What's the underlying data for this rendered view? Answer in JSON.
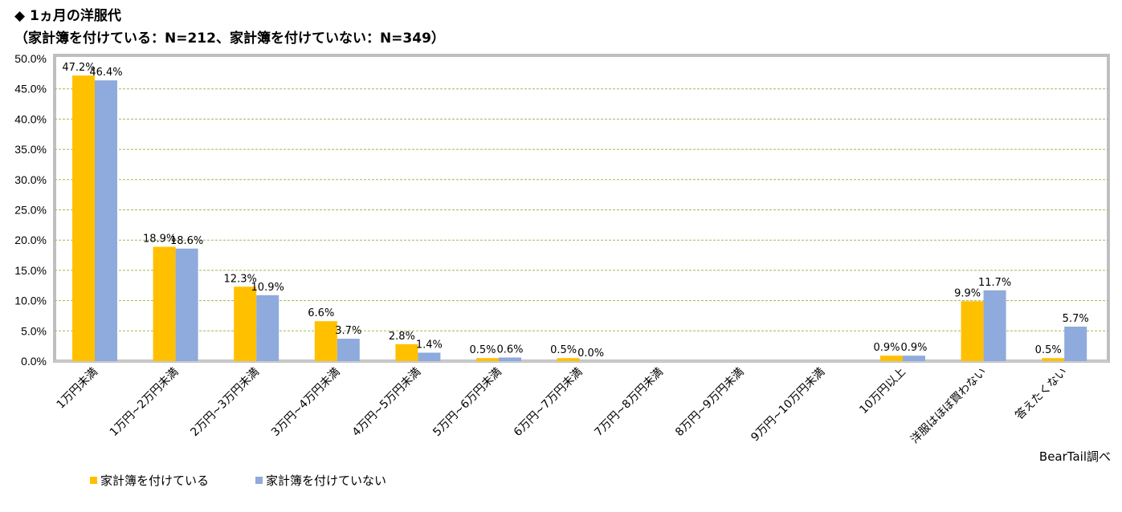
{
  "title": {
    "line1": "◆ 1ヵ月の洋服代",
    "line2": "（家計簿を付けている：N=212、家計簿を付けていない：N=349）"
  },
  "credit": "BearTail調べ",
  "colors": {
    "series1": "#FFC000",
    "series2": "#8FAADC",
    "grid": "#9BBB59",
    "frame": "#BFBFBF"
  },
  "chart_data": {
    "type": "bar",
    "categories": [
      "1万円未満",
      "1万円~2万円未満",
      "2万円~3万円未満",
      "3万円~4万円未満",
      "4万円~5万円未満",
      "5万円~6万円未満",
      "6万円~7万円未満",
      "7万円~8万円未満",
      "8万円~9万円未満",
      "9万円~10万円未満",
      "10万円以上",
      "洋服はほぼ買わない",
      "答えたくない"
    ],
    "series": [
      {
        "name": "家計簿を付けている",
        "values": [
          47.2,
          18.9,
          12.3,
          6.6,
          2.8,
          0.5,
          0.5,
          null,
          null,
          null,
          0.9,
          9.9,
          0.5
        ],
        "labels": [
          "47.2%",
          "18.9%",
          "12.3%",
          "6.6%",
          "2.8%",
          "0.5%",
          "0.5%",
          "",
          "",
          "",
          "0.9%",
          "9.9%",
          "0.5%"
        ]
      },
      {
        "name": "家計簿を付けていない",
        "values": [
          46.4,
          18.6,
          10.9,
          3.7,
          1.4,
          0.6,
          0.0,
          null,
          null,
          null,
          0.9,
          11.7,
          5.7
        ],
        "labels": [
          "46.4%",
          "18.6%",
          "10.9%",
          "3.7%",
          "1.4%",
          "0.6%",
          "0.0%",
          "",
          "",
          "",
          "0.9%",
          "11.7%",
          "5.7%"
        ]
      }
    ],
    "yticks": [
      "0.0%",
      "5.0%",
      "10.0%",
      "15.0%",
      "20.0%",
      "25.0%",
      "30.0%",
      "35.0%",
      "40.0%",
      "45.0%",
      "50.0%"
    ],
    "ylim": [
      0,
      50
    ],
    "grid": true,
    "legend_position": "bottom-left"
  }
}
